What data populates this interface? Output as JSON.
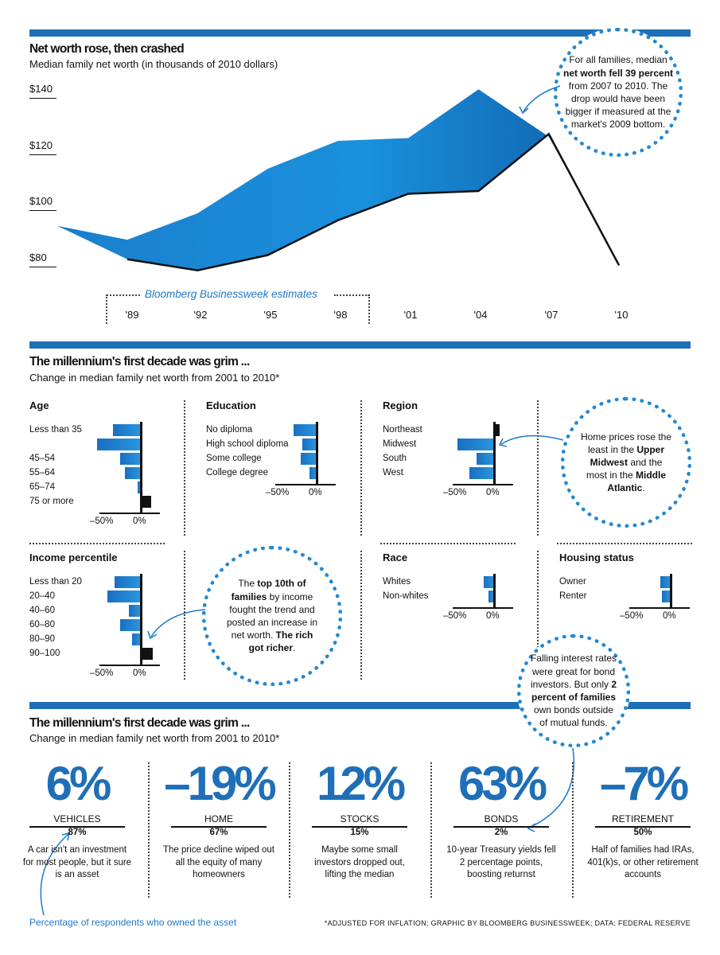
{
  "section1": {
    "title": "Net worth rose, then crashed",
    "subtitle": "Median family net worth (in thousands of 2010 dollars)",
    "callout_parts": [
      "For all families, median ",
      "net worth fell 39 percent",
      " from 2007 to 2010. The drop would have been bigger if measured at the market's 2009 bottom."
    ]
  },
  "section2": {
    "title": "The millennium's first decade was grim ...",
    "subtitle": "Change in median family net worth from 2001 to 2010*",
    "region_callout_parts": [
      "Home prices rose the least in the ",
      "Upper Midwest",
      " and the most in the ",
      "Middle Atlantic",
      "."
    ],
    "income_callout_parts": [
      "The ",
      "top 10th of families",
      " by income fought the trend and posted an increase in net worth. ",
      "The rich got richer",
      "."
    ]
  },
  "section3": {
    "title": "The millennium's first decade was grim ...",
    "subtitle": "Change in median family net worth from 2001 to 2010*",
    "bonds_callout_parts": [
      "Falling interest rates were great for bond investors. But only ",
      "2 percent of families",
      " own bonds outside of mutual funds."
    ],
    "owned_note": "Percentage of respondents who owned the asset",
    "footnote": "*ADJUSTED FOR INFLATION; GRAPHIC BY BLOOMBERG BUSINESSWEEK; DATA: FEDERAL RESERVE",
    "assets": [
      {
        "change": "6%",
        "name": "VEHICLES",
        "owned": "87%",
        "note": "A car isn't an investment for most people, but it sure is an asset"
      },
      {
        "change": "–19%",
        "name": "HOME",
        "owned": "67%",
        "note": "The price decline wiped out all the equity of many homeowners"
      },
      {
        "change": "12%",
        "name": "STOCKS",
        "owned": "15%",
        "note": "Maybe some small investors dropped out, lifting the median"
      },
      {
        "change": "63%",
        "name": "BONDS",
        "owned": "2%",
        "note": "10-year Treasury yields fell 2 percentage points, boosting returnst"
      },
      {
        "change": "–7%",
        "name": "RETIREMENT",
        "owned": "50%",
        "note": "Half of families had IRAs, 401(k)s, or other retirement accounts"
      }
    ]
  },
  "colors": {
    "accent": "#1f6fb8",
    "area": "#1a8ad4",
    "bar": "#1f78c8",
    "positive": "#111111"
  },
  "chart_data": [
    {
      "type": "line",
      "title": "Net worth rose, then crashed",
      "subtitle": "Median family net worth (in thousands of 2010 dollars)",
      "x": [
        "'89",
        "'92",
        "'95",
        "'98",
        "'01",
        "'04",
        "'07",
        "'10"
      ],
      "y_tick_labels": [
        "$80",
        "$100",
        "$120",
        "$140"
      ],
      "ylim": [
        75,
        145
      ],
      "estimate_label": "Bloomberg Businessweek estimates",
      "series": [
        {
          "name": "",
          "values": [
            79.5,
            75.5,
            81,
            93.5,
            103,
            104,
            124.5,
            77.3
          ]
        },
        {
          "name": "",
          "values": [
            86.5,
            96,
            112,
            122,
            123,
            140.5,
            123.5,
            77.3
          ]
        }
      ],
      "area_extra_point": {
        "x": "'86",
        "y": 91.5
      }
    },
    {
      "type": "bar",
      "title": "The millennium's first decade was grim ...",
      "panels": [
        {
          "title": "Age",
          "categories": [
            "Less than 35",
            "",
            "45–54",
            "55–64",
            "65–74",
            "75 or more"
          ],
          "values": [
            -16,
            -25,
            -12,
            -9,
            -2,
            6
          ]
        },
        {
          "title": "Education",
          "categories": [
            "No diploma",
            "High school diploma",
            "Some college",
            "College degree"
          ],
          "values": [
            -13,
            -8,
            -9,
            -4
          ]
        },
        {
          "title": "Region",
          "categories": [
            "Northeast",
            "Midwest",
            "South",
            "West"
          ],
          "values": [
            3,
            -21,
            -10,
            -14
          ]
        },
        {
          "title": "Income percentile",
          "categories": [
            "Less than 20",
            "20–40",
            "40–60",
            "60–80",
            "80–90",
            "90–100"
          ],
          "values": [
            -15,
            -19,
            -7,
            -12,
            -5,
            7
          ]
        },
        {
          "title": "Race",
          "categories": [
            "Whites",
            "Non-whites"
          ],
          "values": [
            -6,
            -3
          ]
        },
        {
          "title": "Housing status",
          "categories": [
            "Owner",
            "Renter"
          ],
          "values": [
            -6,
            -5
          ]
        }
      ],
      "axis_labels": [
        "–50%",
        "0%"
      ]
    }
  ]
}
